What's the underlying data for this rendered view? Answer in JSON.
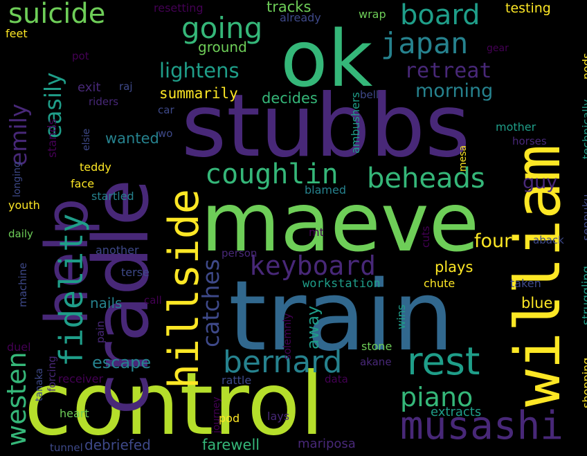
{
  "palette": {
    "background": "#000000",
    "yellow": "#fde725",
    "lime": "#b5de2b",
    "green": "#6ece58",
    "mint": "#35b779",
    "teal": "#1f9e89",
    "cyan": "#26828e",
    "blue": "#31688e",
    "indigo": "#3e4989",
    "violet": "#482878",
    "purple": "#440154"
  },
  "words": [
    {
      "text": "stubbs"
    },
    {
      "text": "train"
    },
    {
      "text": "control"
    },
    {
      "text": "maeve"
    },
    {
      "text": "cradle"
    },
    {
      "text": "william"
    },
    {
      "text": "ok"
    },
    {
      "text": "help"
    },
    {
      "text": "hillside"
    },
    {
      "text": "rest"
    },
    {
      "text": "bernard"
    },
    {
      "text": "musashi"
    },
    {
      "text": "keyboard"
    },
    {
      "text": "fidelity"
    },
    {
      "text": "coughlin"
    },
    {
      "text": "beheads"
    },
    {
      "text": "piano"
    },
    {
      "text": "board"
    },
    {
      "text": "japan"
    },
    {
      "text": "going"
    },
    {
      "text": "suicide"
    },
    {
      "text": "westen"
    },
    {
      "text": "emily"
    },
    {
      "text": "easily"
    },
    {
      "text": "catches"
    },
    {
      "text": "lightens"
    },
    {
      "text": "retreat"
    },
    {
      "text": "morning"
    },
    {
      "text": "four"
    },
    {
      "text": "guy"
    },
    {
      "text": "escape"
    },
    {
      "text": "away"
    },
    {
      "text": "nails"
    },
    {
      "text": "blue"
    },
    {
      "text": "plays"
    },
    {
      "text": "wanted"
    },
    {
      "text": "decides"
    },
    {
      "text": "summarily"
    },
    {
      "text": "tracks"
    },
    {
      "text": "testing"
    },
    {
      "text": "ground"
    },
    {
      "text": "farewell"
    },
    {
      "text": "debriefed"
    },
    {
      "text": "extracts"
    },
    {
      "text": "mariposa"
    },
    {
      "text": "workstation"
    },
    {
      "text": "stands"
    },
    {
      "text": "exit"
    },
    {
      "text": "teddy"
    },
    {
      "text": "face"
    },
    {
      "text": "startled"
    },
    {
      "text": "youth"
    },
    {
      "text": "daily"
    },
    {
      "text": "another"
    },
    {
      "text": "terse"
    },
    {
      "text": "machine"
    },
    {
      "text": "duel"
    },
    {
      "text": "pain"
    },
    {
      "text": "forcing"
    },
    {
      "text": "tanaka"
    },
    {
      "text": "receiver"
    },
    {
      "text": "heart"
    },
    {
      "text": "tunnel"
    },
    {
      "text": "journey"
    },
    {
      "text": "pod"
    },
    {
      "text": "lays"
    },
    {
      "text": "data"
    },
    {
      "text": "rattle"
    },
    {
      "text": "stone"
    },
    {
      "text": "akane"
    },
    {
      "text": "wins"
    },
    {
      "text": "solemnly"
    },
    {
      "text": "call"
    },
    {
      "text": "person"
    },
    {
      "text": "cuts"
    },
    {
      "text": "chute"
    },
    {
      "text": "taken"
    },
    {
      "text": "aback"
    },
    {
      "text": "struggling"
    },
    {
      "text": "shopping"
    },
    {
      "text": "seppuku"
    },
    {
      "text": "technically"
    },
    {
      "text": "nods"
    },
    {
      "text": "horses"
    },
    {
      "text": "mother"
    },
    {
      "text": "mesa"
    },
    {
      "text": "blamed"
    },
    {
      "text": "mt"
    },
    {
      "text": "ambushers"
    },
    {
      "text": "bell"
    },
    {
      "text": "elsie"
    },
    {
      "text": "riders"
    },
    {
      "text": "raj"
    },
    {
      "text": "car"
    },
    {
      "text": "wo"
    },
    {
      "text": "pot"
    },
    {
      "text": "feet"
    },
    {
      "text": "resetting"
    },
    {
      "text": "already"
    },
    {
      "text": "wrap"
    },
    {
      "text": "gear"
    },
    {
      "text": "longing"
    }
  ]
}
